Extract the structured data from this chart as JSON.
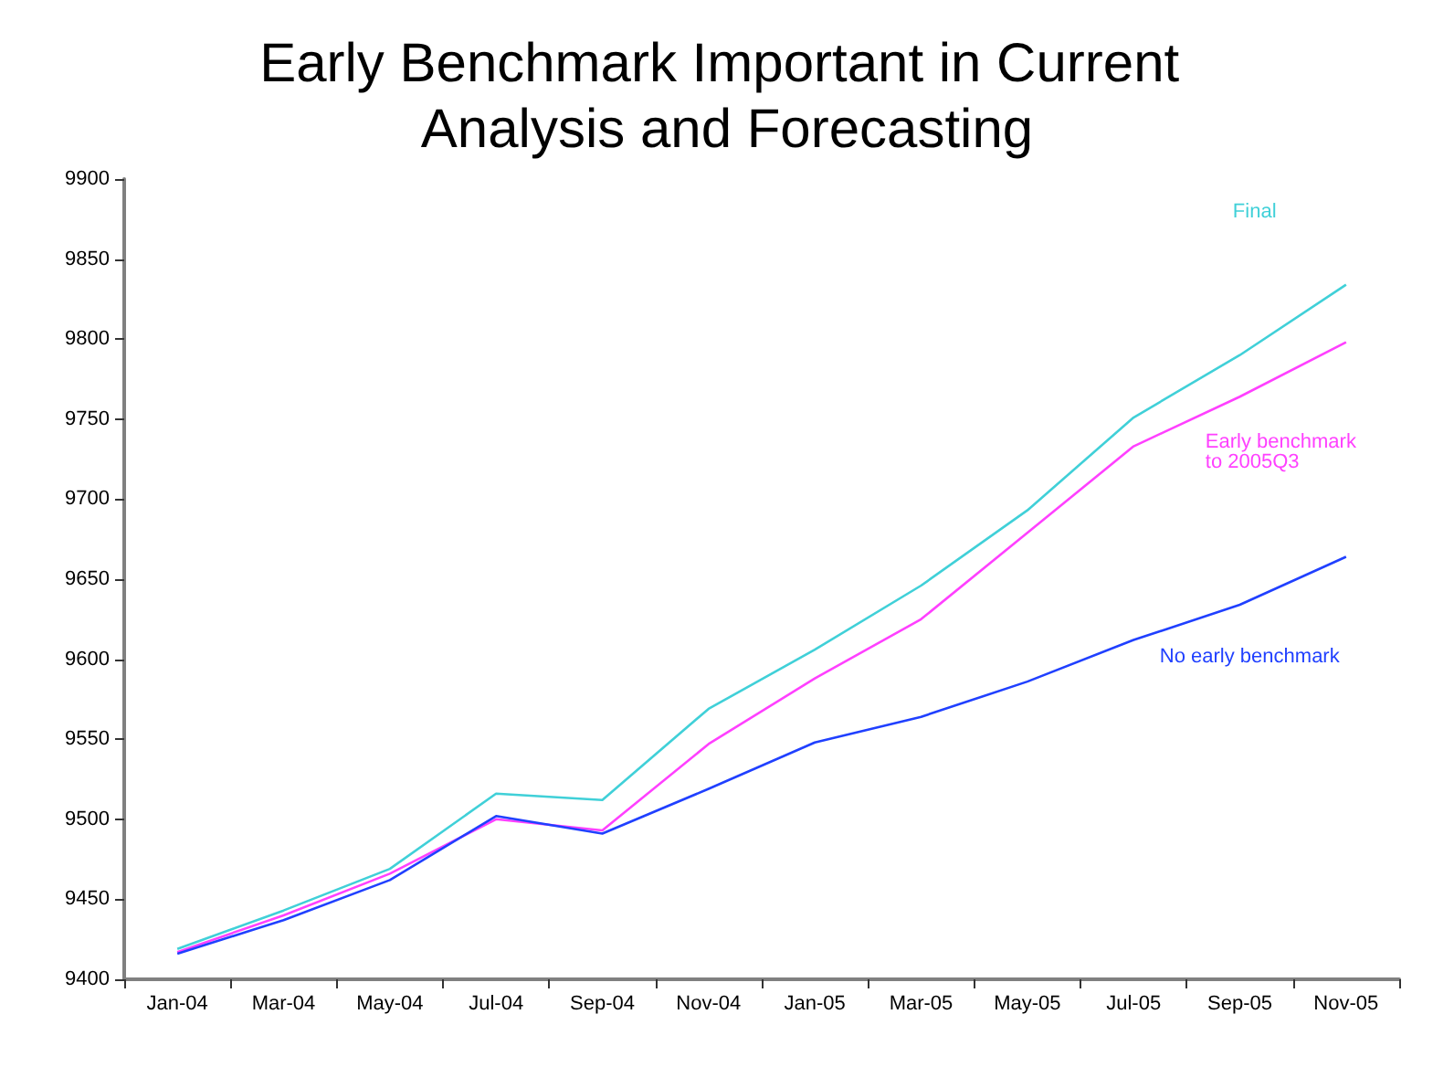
{
  "chart_data": {
    "type": "line",
    "title": "Early Benchmark Important in Current Analysis and Forecasting",
    "categories": [
      "Jan-04",
      "Mar-04",
      "May-04",
      "Jul-04",
      "Sep-04",
      "Nov-04",
      "Jan-05",
      "Mar-05",
      "May-05",
      "Jul-05",
      "Sep-05",
      "Nov-05"
    ],
    "series": [
      {
        "name": "Final",
        "color": "#40d0d8",
        "values": [
          9419,
          9443,
          9469,
          9516,
          9512,
          9569,
          9606,
          9646,
          9693,
          9751,
          9790,
          9834
        ]
      },
      {
        "name": "Early benchmark to 2005Q3",
        "color": "#ff40ff",
        "values": [
          9417,
          9440,
          9466,
          9500,
          9493,
          9547,
          9588,
          9625,
          9679,
          9733,
          9764,
          9798
        ]
      },
      {
        "name": "No early benchmark",
        "color": "#2040ff",
        "values": [
          9416,
          9437,
          9462,
          9502,
          9491,
          9519,
          9548,
          9564,
          9586,
          9612,
          9634,
          9664
        ]
      }
    ],
    "ylim": [
      9400,
      9900
    ],
    "yticks": [
      9400,
      9450,
      9500,
      9550,
      9600,
      9650,
      9700,
      9750,
      9800,
      9850,
      9900
    ],
    "grid": false,
    "legend": false,
    "marker": "none",
    "line_style": "solid"
  }
}
